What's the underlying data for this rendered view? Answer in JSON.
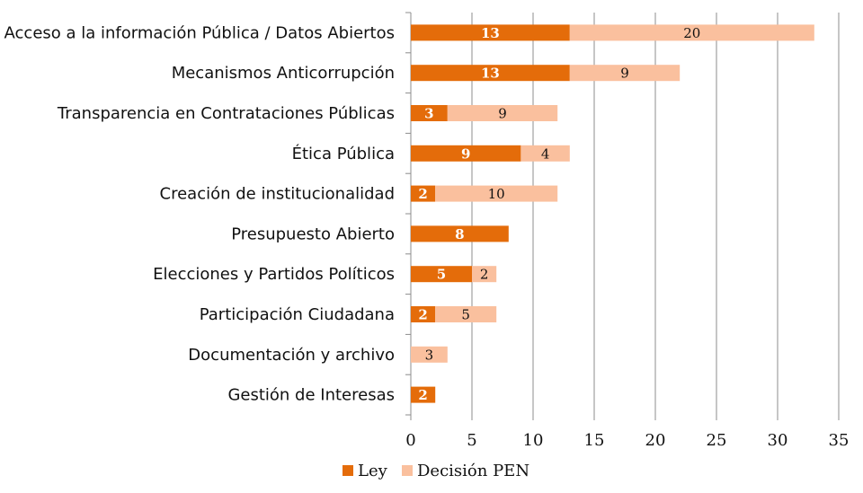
{
  "chart_data": {
    "type": "bar",
    "orientation": "horizontal",
    "stacked": true,
    "title": "",
    "xlabel": "",
    "ylabel": "",
    "categories": [
      "Acceso a la información Pública / Datos Abiertos",
      "Mecanismos Anticorrupción",
      "Transparencia en Contrataciones Públicas",
      "Ética Pública",
      "Creación de institucionalidad",
      "Presupuesto Abierto",
      "Elecciones y Partidos Políticos",
      "Participación Ciudadana",
      "Documentación y archivo",
      "Gestión de Interesas"
    ],
    "series": [
      {
        "name": "Ley",
        "color": "#E46C0A",
        "values": [
          13,
          13,
          3,
          9,
          2,
          8,
          5,
          2,
          0,
          2
        ]
      },
      {
        "name": "Decisión PEN",
        "color": "#FAC09E",
        "values": [
          20,
          9,
          9,
          4,
          10,
          0,
          2,
          5,
          3,
          0
        ]
      }
    ],
    "xlim": [
      0,
      35
    ],
    "xticks": [
      "0",
      "5",
      "10",
      "15",
      "20",
      "25",
      "30",
      "35"
    ],
    "grid": true,
    "legend_position": "bottom"
  }
}
